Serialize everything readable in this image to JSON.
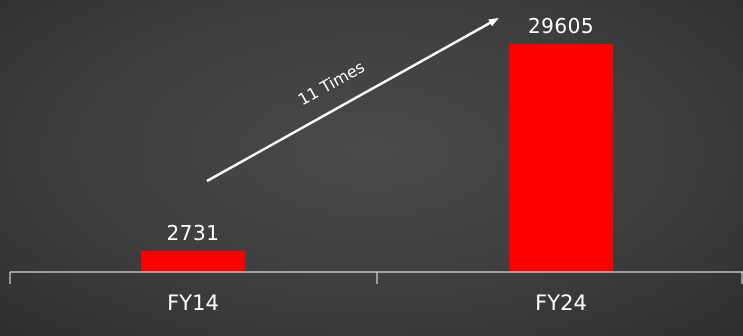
{
  "chart_data": {
    "type": "bar",
    "title": "",
    "xlabel": "",
    "ylabel": "",
    "categories": [
      "FY14",
      "FY24"
    ],
    "values": [
      2731,
      29605
    ],
    "ylim": [
      0,
      29605
    ],
    "grid": false,
    "legend": "none",
    "bar_color": "#ff0000",
    "annotation": {
      "text": "11 Times",
      "from_category": "FY14",
      "to_category": "FY24"
    }
  }
}
